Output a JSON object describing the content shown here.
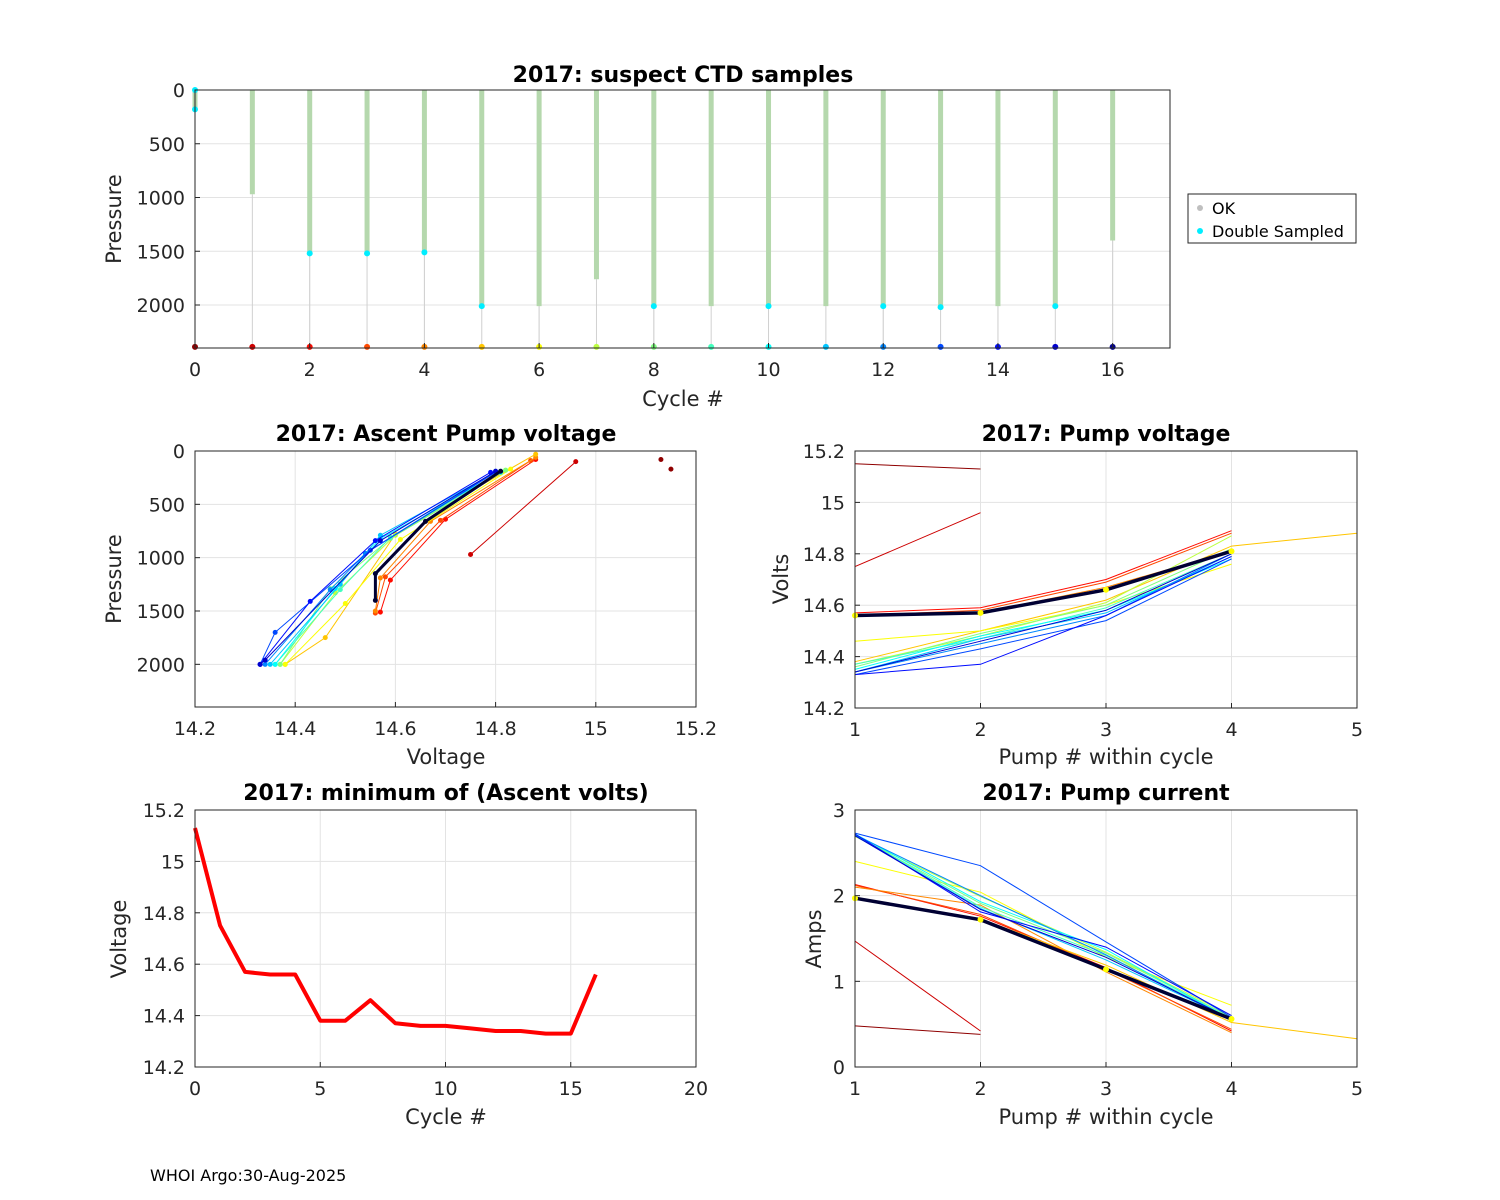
{
  "footer": "WHOI Argo:30-Aug-2025",
  "chart_data": [
    {
      "id": "p1",
      "type": "scatter",
      "title": "2017: suspect CTD samples",
      "xlabel": "Cycle #",
      "ylabel": "Pressure",
      "xlim": [
        0,
        17
      ],
      "ylim": [
        0,
        2400
      ],
      "y_reversed": true,
      "xticks": [
        0,
        2,
        4,
        6,
        8,
        10,
        12,
        14,
        16
      ],
      "yticks": [
        0,
        500,
        1000,
        1500,
        2000
      ],
      "grid": true,
      "legend": {
        "position": "outside-right",
        "entries": [
          "OK",
          "Double Sampled"
        ]
      },
      "profiles": [
        {
          "cycle": 0,
          "max_pressure": 180,
          "double_sampled": [
            0,
            180
          ]
        },
        {
          "cycle": 1,
          "max_pressure": 970,
          "double_sampled": []
        },
        {
          "cycle": 2,
          "max_pressure": 1520,
          "double_sampled": [
            1520
          ]
        },
        {
          "cycle": 3,
          "max_pressure": 1520,
          "double_sampled": [
            1520
          ]
        },
        {
          "cycle": 4,
          "max_pressure": 1510,
          "double_sampled": [
            1510
          ]
        },
        {
          "cycle": 5,
          "max_pressure": 2010,
          "double_sampled": [
            2010
          ]
        },
        {
          "cycle": 6,
          "max_pressure": 2010,
          "double_sampled": []
        },
        {
          "cycle": 7,
          "max_pressure": 1760,
          "double_sampled": []
        },
        {
          "cycle": 8,
          "max_pressure": 2010,
          "double_sampled": [
            2010
          ]
        },
        {
          "cycle": 9,
          "max_pressure": 2010,
          "double_sampled": []
        },
        {
          "cycle": 10,
          "max_pressure": 2010,
          "double_sampled": [
            2010
          ]
        },
        {
          "cycle": 11,
          "max_pressure": 2010,
          "double_sampled": []
        },
        {
          "cycle": 12,
          "max_pressure": 2010,
          "double_sampled": [
            2010
          ]
        },
        {
          "cycle": 13,
          "max_pressure": 2020,
          "double_sampled": [
            2020
          ]
        },
        {
          "cycle": 14,
          "max_pressure": 2010,
          "double_sampled": []
        },
        {
          "cycle": 15,
          "max_pressure": 2010,
          "double_sampled": [
            2010
          ]
        },
        {
          "cycle": 16,
          "max_pressure": 1400,
          "double_sampled": []
        }
      ],
      "bottom_marker_pressure": 2390,
      "colors": {
        "ok": "#b5d8ad",
        "double": "#00eeff"
      }
    },
    {
      "id": "p2",
      "type": "line",
      "title": "2017: Ascent Pump voltage",
      "xlabel": "Voltage",
      "ylabel": "Pressure",
      "xlim": [
        14.2,
        15.2
      ],
      "ylim": [
        0,
        2400
      ],
      "y_reversed": true,
      "xticks": [
        14.2,
        14.4,
        14.6,
        14.8,
        15,
        15.2
      ],
      "yticks": [
        0,
        500,
        1000,
        1500,
        2000
      ],
      "grid": true,
      "series": [
        {
          "cycle": 0,
          "points": [
            [
              15.13,
              80
            ],
            [
              15.15,
              170
            ]
          ]
        },
        {
          "cycle": 1,
          "points": [
            [
              14.75,
              970
            ],
            [
              14.96,
              100
            ]
          ]
        },
        {
          "cycle": 2,
          "points": [
            [
              14.57,
              1510
            ],
            [
              14.59,
              1210
            ],
            [
              14.7,
              640
            ],
            [
              14.88,
              80
            ]
          ]
        },
        {
          "cycle": 3,
          "points": [
            [
              14.56,
              1520
            ],
            [
              14.58,
              1180
            ],
            [
              14.69,
              650
            ],
            [
              14.87,
              90
            ]
          ]
        },
        {
          "cycle": 4,
          "points": [
            [
              14.56,
              1500
            ],
            [
              14.57,
              1190
            ],
            [
              14.67,
              660
            ],
            [
              14.88,
              60
            ]
          ]
        },
        {
          "cycle": 5,
          "points": [
            [
              14.38,
              2000
            ],
            [
              14.46,
              1750
            ],
            [
              14.6,
              780
            ],
            [
              14.88,
              30
            ]
          ]
        },
        {
          "cycle": 6,
          "points": [
            [
              14.38,
              2000
            ],
            [
              14.5,
              1430
            ],
            [
              14.61,
              830
            ],
            [
              14.83,
              170
            ]
          ]
        },
        {
          "cycle": 7,
          "points": [
            [
              14.37,
              2000
            ],
            [
              14.48,
              1330
            ],
            [
              14.6,
              790
            ],
            [
              14.82,
              180
            ]
          ]
        },
        {
          "cycle": 8,
          "points": [
            [
              14.37,
              2000
            ],
            [
              14.47,
              1290
            ],
            [
              14.59,
              820
            ],
            [
              14.82,
              180
            ]
          ]
        },
        {
          "cycle": 9,
          "points": [
            [
              14.36,
              2000
            ],
            [
              14.49,
              1300
            ],
            [
              14.59,
              810
            ],
            [
              14.81,
              190
            ]
          ]
        },
        {
          "cycle": 10,
          "points": [
            [
              14.36,
              2000
            ],
            [
              14.48,
              1290
            ],
            [
              14.57,
              820
            ],
            [
              14.81,
              200
            ]
          ]
        },
        {
          "cycle": 11,
          "points": [
            [
              14.35,
              2000
            ],
            [
              14.49,
              1250
            ],
            [
              14.57,
              790
            ],
            [
              14.8,
              200
            ]
          ]
        },
        {
          "cycle": 12,
          "points": [
            [
              14.34,
              2000
            ],
            [
              14.47,
              1300
            ],
            [
              14.54,
              960
            ],
            [
              14.8,
              190
            ]
          ]
        },
        {
          "cycle": 13,
          "points": [
            [
              14.33,
              2000
            ],
            [
              14.36,
              1700
            ],
            [
              14.55,
              930
            ],
            [
              14.8,
              200
            ]
          ]
        },
        {
          "cycle": 14,
          "points": [
            [
              14.33,
              2000
            ],
            [
              14.43,
              1410
            ],
            [
              14.56,
              840
            ],
            [
              14.79,
              200
            ]
          ]
        },
        {
          "cycle": 15,
          "points": [
            [
              14.33,
              2000
            ],
            [
              14.34,
              1960
            ],
            [
              14.57,
              840
            ],
            [
              14.8,
              190
            ]
          ]
        },
        {
          "cycle": 16,
          "points": [
            [
              14.56,
              1400
            ],
            [
              14.56,
              1150
            ],
            [
              14.66,
              660
            ],
            [
              14.81,
              190
            ]
          ]
        }
      ]
    },
    {
      "id": "p3",
      "type": "line",
      "title": "2017: Pump voltage",
      "xlabel": "Pump # within cycle",
      "ylabel": "Volts",
      "xlim": [
        1,
        5
      ],
      "ylim": [
        14.2,
        15.2
      ],
      "xticks": [
        1,
        2,
        3,
        4,
        5
      ],
      "yticks": [
        14.2,
        14.4,
        14.6,
        14.8,
        15,
        15.2
      ],
      "ytick_labels": [
        "14.2",
        "14.4",
        "14.6",
        "14.8",
        "15",
        "15.2"
      ],
      "grid": true,
      "series": [
        {
          "cycle": 0,
          "values": [
            15.15,
            15.13
          ]
        },
        {
          "cycle": 1,
          "values": [
            14.75,
            14.96
          ]
        },
        {
          "cycle": 2,
          "values": [
            14.57,
            14.59,
            14.7,
            14.89
          ]
        },
        {
          "cycle": 3,
          "values": [
            14.56,
            14.58,
            14.69,
            14.88
          ]
        },
        {
          "cycle": 4,
          "values": [
            14.56,
            14.57,
            14.67,
            14.81
          ]
        },
        {
          "cycle": 5,
          "values": [
            14.38,
            14.5,
            14.62,
            14.83,
            14.88
          ]
        },
        {
          "cycle": 6,
          "values": [
            14.46,
            14.5,
            14.6,
            14.76
          ]
        },
        {
          "cycle": 7,
          "values": [
            14.37,
            14.48,
            14.61,
            14.87
          ]
        },
        {
          "cycle": 8,
          "values": [
            14.36,
            14.49,
            14.6,
            14.82
          ]
        },
        {
          "cycle": 9,
          "values": [
            14.37,
            14.47,
            14.59,
            14.8
          ]
        },
        {
          "cycle": 10,
          "values": [
            14.35,
            14.48,
            14.58,
            14.78
          ]
        },
        {
          "cycle": 11,
          "values": [
            14.34,
            14.47,
            14.57,
            14.79
          ]
        },
        {
          "cycle": 12,
          "values": [
            14.34,
            14.45,
            14.56,
            14.8
          ]
        },
        {
          "cycle": 13,
          "values": [
            14.33,
            14.43,
            14.54,
            14.78
          ]
        },
        {
          "cycle": 14,
          "values": [
            14.33,
            14.37,
            14.56,
            14.79
          ]
        },
        {
          "cycle": 15,
          "values": [
            14.34,
            14.46,
            14.58,
            14.8
          ]
        },
        {
          "cycle": 16,
          "values": [
            14.56,
            14.57,
            14.66,
            14.81
          ]
        }
      ]
    },
    {
      "id": "p4",
      "type": "line",
      "title": "2017: minimum of (Ascent volts)",
      "xlabel": "Cycle #",
      "ylabel": "Voltage",
      "xlim": [
        0,
        20
      ],
      "ylim": [
        14.2,
        15.2
      ],
      "xticks": [
        0,
        5,
        10,
        15,
        20
      ],
      "yticks": [
        14.2,
        14.4,
        14.6,
        14.8,
        15,
        15.2
      ],
      "ytick_labels": [
        "14.2",
        "14.4",
        "14.6",
        "14.8",
        "15",
        "15.2"
      ],
      "grid": true,
      "x": [
        0,
        1,
        2,
        3,
        4,
        5,
        6,
        7,
        8,
        9,
        10,
        11,
        12,
        13,
        14,
        15,
        16
      ],
      "values": [
        15.13,
        14.75,
        14.57,
        14.56,
        14.56,
        14.38,
        14.38,
        14.46,
        14.37,
        14.36,
        14.36,
        14.35,
        14.34,
        14.34,
        14.33,
        14.33,
        14.56
      ],
      "color": "#ff0000"
    },
    {
      "id": "p5",
      "type": "line",
      "title": "2017: Pump current",
      "xlabel": "Pump # within cycle",
      "ylabel": "Amps",
      "xlim": [
        1,
        5
      ],
      "ylim": [
        0,
        3
      ],
      "xticks": [
        1,
        2,
        3,
        4,
        5
      ],
      "yticks": [
        0,
        1,
        2,
        3
      ],
      "grid": true,
      "series": [
        {
          "cycle": 0,
          "values": [
            0.48,
            0.38
          ]
        },
        {
          "cycle": 1,
          "values": [
            1.47,
            0.42
          ]
        },
        {
          "cycle": 2,
          "values": [
            2.13,
            1.76,
            1.16,
            0.42
          ]
        },
        {
          "cycle": 3,
          "values": [
            2.12,
            1.78,
            1.14,
            0.44
          ]
        },
        {
          "cycle": 4,
          "values": [
            2.1,
            1.89,
            1.11,
            0.4
          ]
        },
        {
          "cycle": 5,
          "values": [
            1.97,
            1.73,
            1.19,
            0.52,
            0.33
          ]
        },
        {
          "cycle": 6,
          "values": [
            2.4,
            2.04,
            1.28,
            0.72
          ]
        },
        {
          "cycle": 7,
          "values": [
            2.69,
            1.99,
            1.34,
            0.6
          ]
        },
        {
          "cycle": 8,
          "values": [
            2.7,
            1.91,
            1.33,
            0.58
          ]
        },
        {
          "cycle": 9,
          "values": [
            2.71,
            1.87,
            1.3,
            0.57
          ]
        },
        {
          "cycle": 10,
          "values": [
            2.72,
            1.93,
            1.37,
            0.55
          ]
        },
        {
          "cycle": 11,
          "values": [
            2.7,
            1.85,
            1.25,
            0.56
          ]
        },
        {
          "cycle": 12,
          "values": [
            2.71,
            2.0,
            1.31,
            0.54
          ]
        },
        {
          "cycle": 13,
          "values": [
            2.73,
            2.35,
            1.46,
            0.58
          ]
        },
        {
          "cycle": 14,
          "values": [
            2.72,
            1.81,
            1.4,
            0.6
          ]
        },
        {
          "cycle": 15,
          "values": [
            2.7,
            1.84,
            1.28,
            0.56
          ]
        },
        {
          "cycle": 16,
          "values": [
            1.97,
            1.72,
            1.14,
            0.56
          ]
        }
      ]
    }
  ]
}
